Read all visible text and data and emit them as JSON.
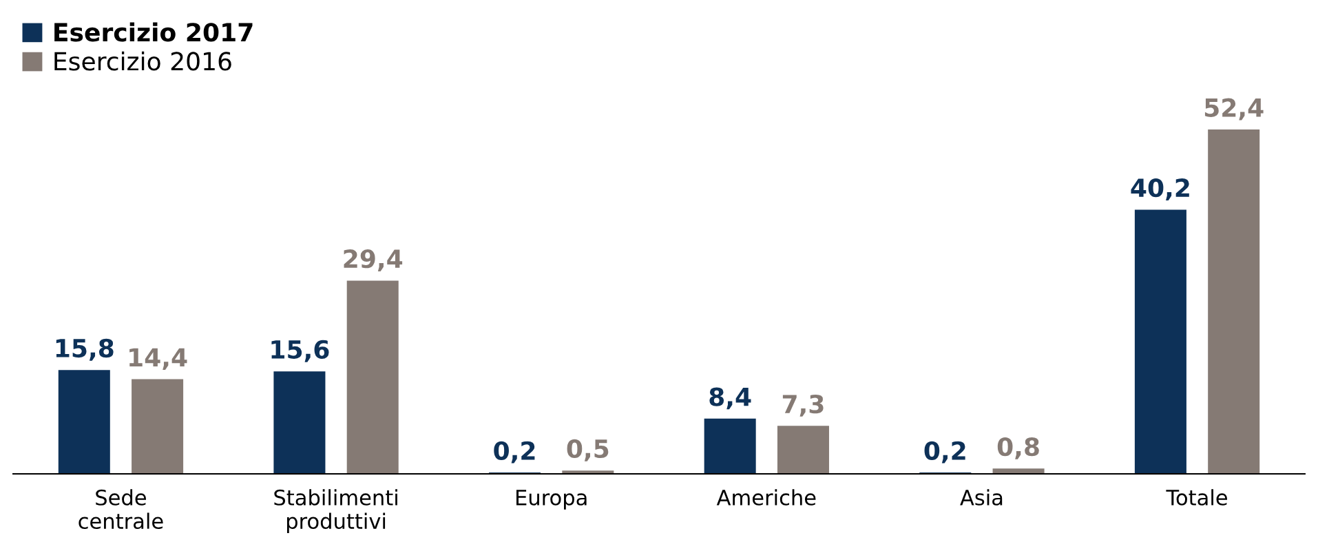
{
  "chart_data": {
    "type": "bar",
    "categories": [
      "Sede\ncentrale",
      "Stabilimenti\nproduttivi",
      "Europa",
      "Americhe",
      "Asia",
      "Totale"
    ],
    "series": [
      {
        "name": "Esercizio 2017",
        "color": "#0d3158",
        "values": [
          15.8,
          15.6,
          0.2,
          8.4,
          0.2,
          40.2
        ],
        "value_labels": [
          "15,8",
          "15,6",
          "0,2",
          "8,4",
          "0,2",
          "40,2"
        ]
      },
      {
        "name": "Esercizio 2016",
        "color": "#857a74",
        "values": [
          14.4,
          29.4,
          0.5,
          7.3,
          0.8,
          52.4
        ],
        "value_labels": [
          "14,4",
          "29,4",
          "0,5",
          "7,3",
          "0,8",
          "52,4"
        ]
      }
    ],
    "legend": "top left",
    "grid": false
  }
}
